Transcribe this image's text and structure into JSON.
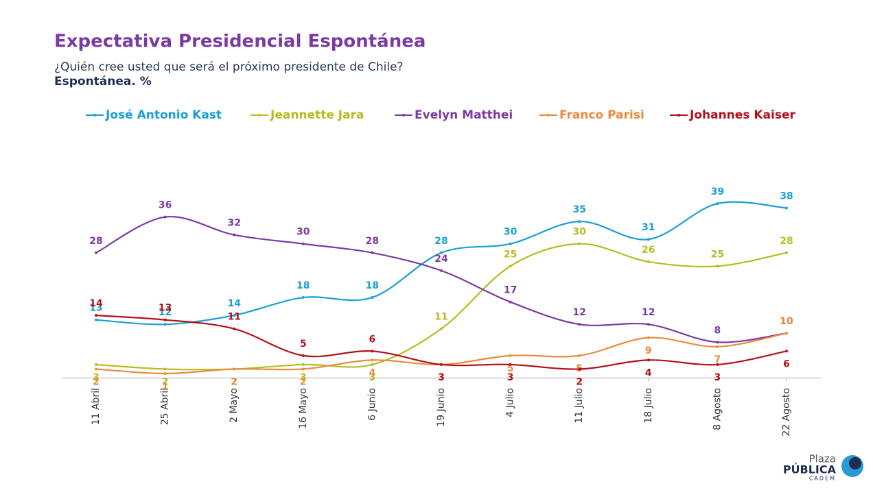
{
  "chart_data": {
    "type": "line",
    "title": "Expectativa Presidencial Espontánea",
    "subtitle": "¿Quién cree usted que será el próximo presidente de Chile?",
    "caption": "Espontánea. %",
    "categories": [
      "11 Abril",
      "25 Abril",
      "2 Mayo",
      "16 Mayo",
      "6 Junio",
      "19 Junio",
      "4 Julio",
      "11 Julio",
      "18 Julio",
      "8 Agosto",
      "22 Agosto"
    ],
    "series": [
      {
        "name": "José Antonio Kast",
        "color": "#1a9fd8",
        "values": [
          13,
          12,
          14,
          18,
          18,
          28,
          30,
          35,
          31,
          39,
          38
        ]
      },
      {
        "name": "Jeannette Jara",
        "color": "#b5bd1f",
        "values": [
          3,
          2,
          2,
          3,
          3,
          11,
          25,
          30,
          26,
          25,
          28
        ]
      },
      {
        "name": "Evelyn Matthei",
        "color": "#7b3aa0",
        "values": [
          28,
          36,
          32,
          30,
          28,
          24,
          17,
          12,
          12,
          8,
          10
        ]
      },
      {
        "name": "Franco Parisi",
        "color": "#ec8a3c",
        "values": [
          2,
          1,
          2,
          2,
          4,
          3,
          5,
          5,
          9,
          7,
          10
        ]
      },
      {
        "name": "Johannes Kaiser",
        "color": "#b3101a",
        "values": [
          14,
          13,
          11,
          5,
          6,
          3,
          3,
          2,
          4,
          3,
          6
        ]
      }
    ],
    "legend": "top"
  },
  "logo": {
    "top": "Plaza",
    "middle": "PÚBLICA",
    "bottom": "CADEM"
  }
}
